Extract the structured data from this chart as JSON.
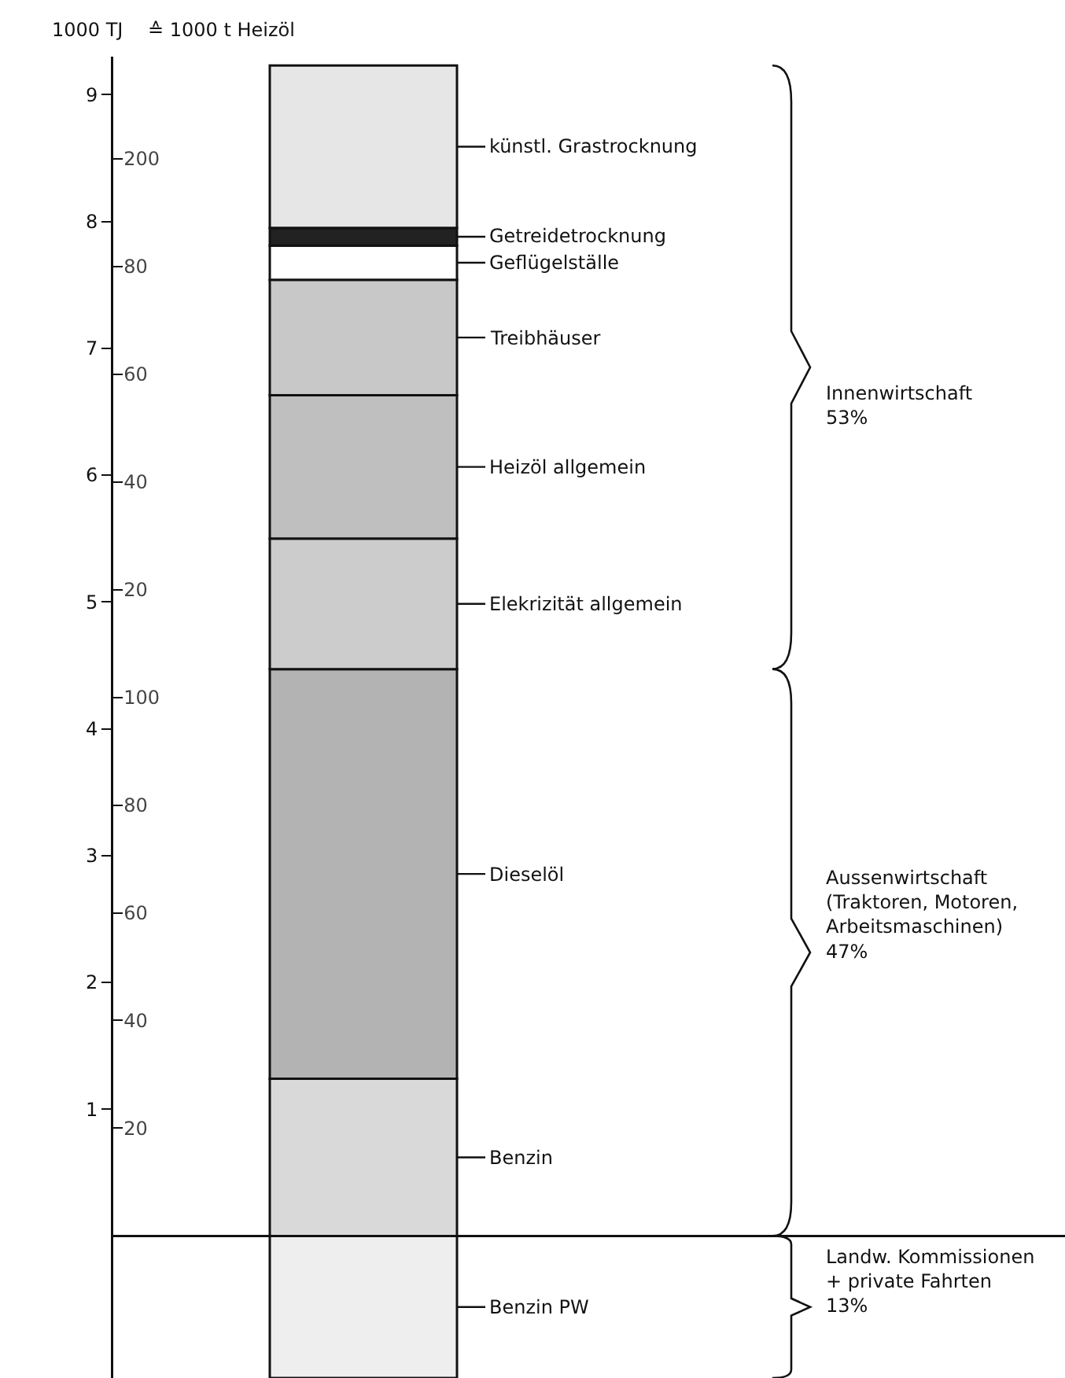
{
  "chart_data": {
    "type": "bar",
    "stacked": true,
    "ylabel": "1000 TJ",
    "y2label": "≙ 1000 t Heizöl",
    "categories": [
      null
    ],
    "series": [
      {
        "name": "Benzin PW",
        "color": "#eeeeee",
        "values": [
          -1.12
        ]
      },
      {
        "name": "Benzin",
        "color": "#d9d9d9",
        "values": [
          1.24
        ]
      },
      {
        "name": "Dieselöl",
        "color": "#b3b3b3",
        "values": [
          3.23
        ]
      },
      {
        "name": "Elekrizität allgemein",
        "color": "#cccccc",
        "values": [
          1.03
        ]
      },
      {
        "name": "Heizöl allgemein",
        "color": "#bfbfbf",
        "values": [
          1.13
        ]
      },
      {
        "name": "Treibhäuser",
        "color": "#c8c8c8",
        "values": [
          0.91
        ]
      },
      {
        "name": "Geflügelställe",
        "color": "#ffffff",
        "values": [
          0.27
        ]
      },
      {
        "name": "Getreidetrocknung",
        "color": "#222222",
        "values": [
          0.14
        ]
      },
      {
        "name": "künstl. Grastrocknung",
        "color": "#e6e6e6",
        "values": [
          1.28
        ]
      }
    ],
    "ylim": [
      -1.12,
      9.3
    ],
    "yticks": [
      1,
      2,
      3,
      4,
      5,
      6,
      7,
      8,
      9
    ],
    "y2lim": [
      -26.4,
      219
    ],
    "y2ticks": [
      20,
      40,
      60,
      80,
      100,
      200
    ],
    "y3lim": [
      -126.4,
      119
    ],
    "y3ticks": [
      20,
      40,
      60,
      80
    ],
    "annotations": [
      "Innenwirtschaft\n53%",
      "Aussenwirtschaft\n(Traktoren, Motoren,\nArbeitsmaschinen)\n47%",
      "Landw. Kommissionen\n+ private Fahrten\n13%"
    ],
    "grid": false,
    "legend": "right"
  }
}
